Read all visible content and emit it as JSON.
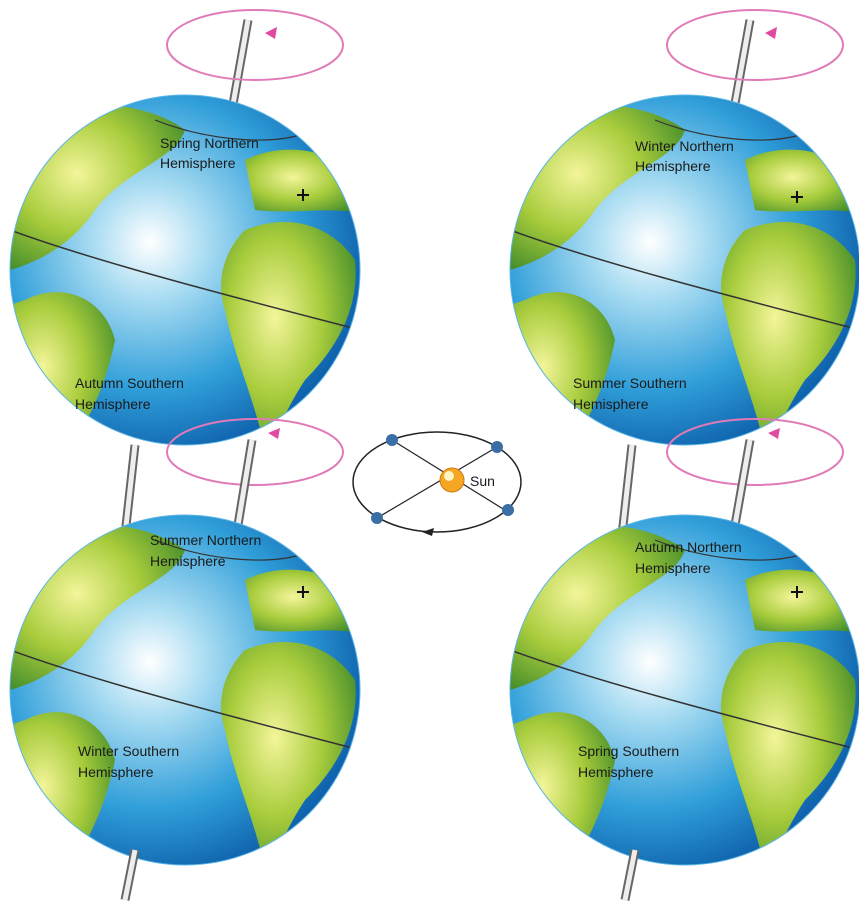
{
  "globes": [
    {
      "north": [
        "Spring Northern",
        "Hemisphere"
      ],
      "south": [
        "Autumn Southern",
        "Hemisphere"
      ]
    },
    {
      "north": [
        "Winter Northern",
        "Hemisphere"
      ],
      "south": [
        "Summer Southern",
        "Hemisphere"
      ]
    },
    {
      "north": [
        "Summer Northern",
        "Hemisphere"
      ],
      "south": [
        "Winter Southern",
        "Hemisphere"
      ]
    },
    {
      "north": [
        "Autumn Northern",
        "Hemisphere"
      ],
      "south": [
        "Spring Southern",
        "Hemisphere"
      ]
    }
  ],
  "orbit": {
    "sun": "Sun"
  }
}
